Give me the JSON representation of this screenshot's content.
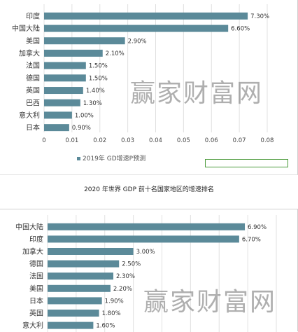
{
  "chart_data": [
    {
      "type": "bar",
      "orientation": "horizontal",
      "categories": [
        "印度",
        "中国大陆",
        "美国",
        "加拿大",
        "法国",
        "德国",
        "英国",
        "巴西",
        "意大利",
        "日本"
      ],
      "values": [
        0.073,
        0.066,
        0.029,
        0.021,
        0.015,
        0.015,
        0.014,
        0.013,
        0.01,
        0.009
      ],
      "data_labels": [
        "7.30%",
        "6.60%",
        "2.90%",
        "2.10%",
        "1.50%",
        "1.50%",
        "1.40%",
        "1.30%",
        "1.00%",
        "0.90%"
      ],
      "xlim": [
        0,
        0.08
      ],
      "xticks": [
        "0",
        "0.01",
        "0.02",
        "0.03",
        "0.04",
        "0.05",
        "0.06",
        "0.07",
        "0.08"
      ],
      "grid": true,
      "legend": "2019年 GD增速P预测",
      "legend_placement": "bottom-left",
      "color": "#5b8a99"
    },
    {
      "type": "bar",
      "orientation": "horizontal",
      "title": "2020 年世界 GDP 前十名国家地区的增速排名",
      "categories": [
        "中国大陆",
        "印度",
        "加拿大",
        "德国",
        "法国",
        "美国",
        "日本",
        "英国",
        "意大利"
      ],
      "values": [
        0.069,
        0.067,
        0.03,
        0.025,
        0.023,
        0.022,
        0.019,
        0.018,
        0.016
      ],
      "data_labels": [
        "6.90%",
        "6.70%",
        "3.00%",
        "2.50%",
        "2.30%",
        "2.20%",
        "1.90%",
        "1.80%",
        "1.60%"
      ],
      "xlim": [
        0,
        0.08
      ],
      "grid": true,
      "color": "#5b8a99"
    }
  ],
  "watermark": "赢家财富网",
  "colors": {
    "bar": "#5b8a99",
    "grid": "#e0e0e0",
    "box": "#4a9a3a"
  }
}
